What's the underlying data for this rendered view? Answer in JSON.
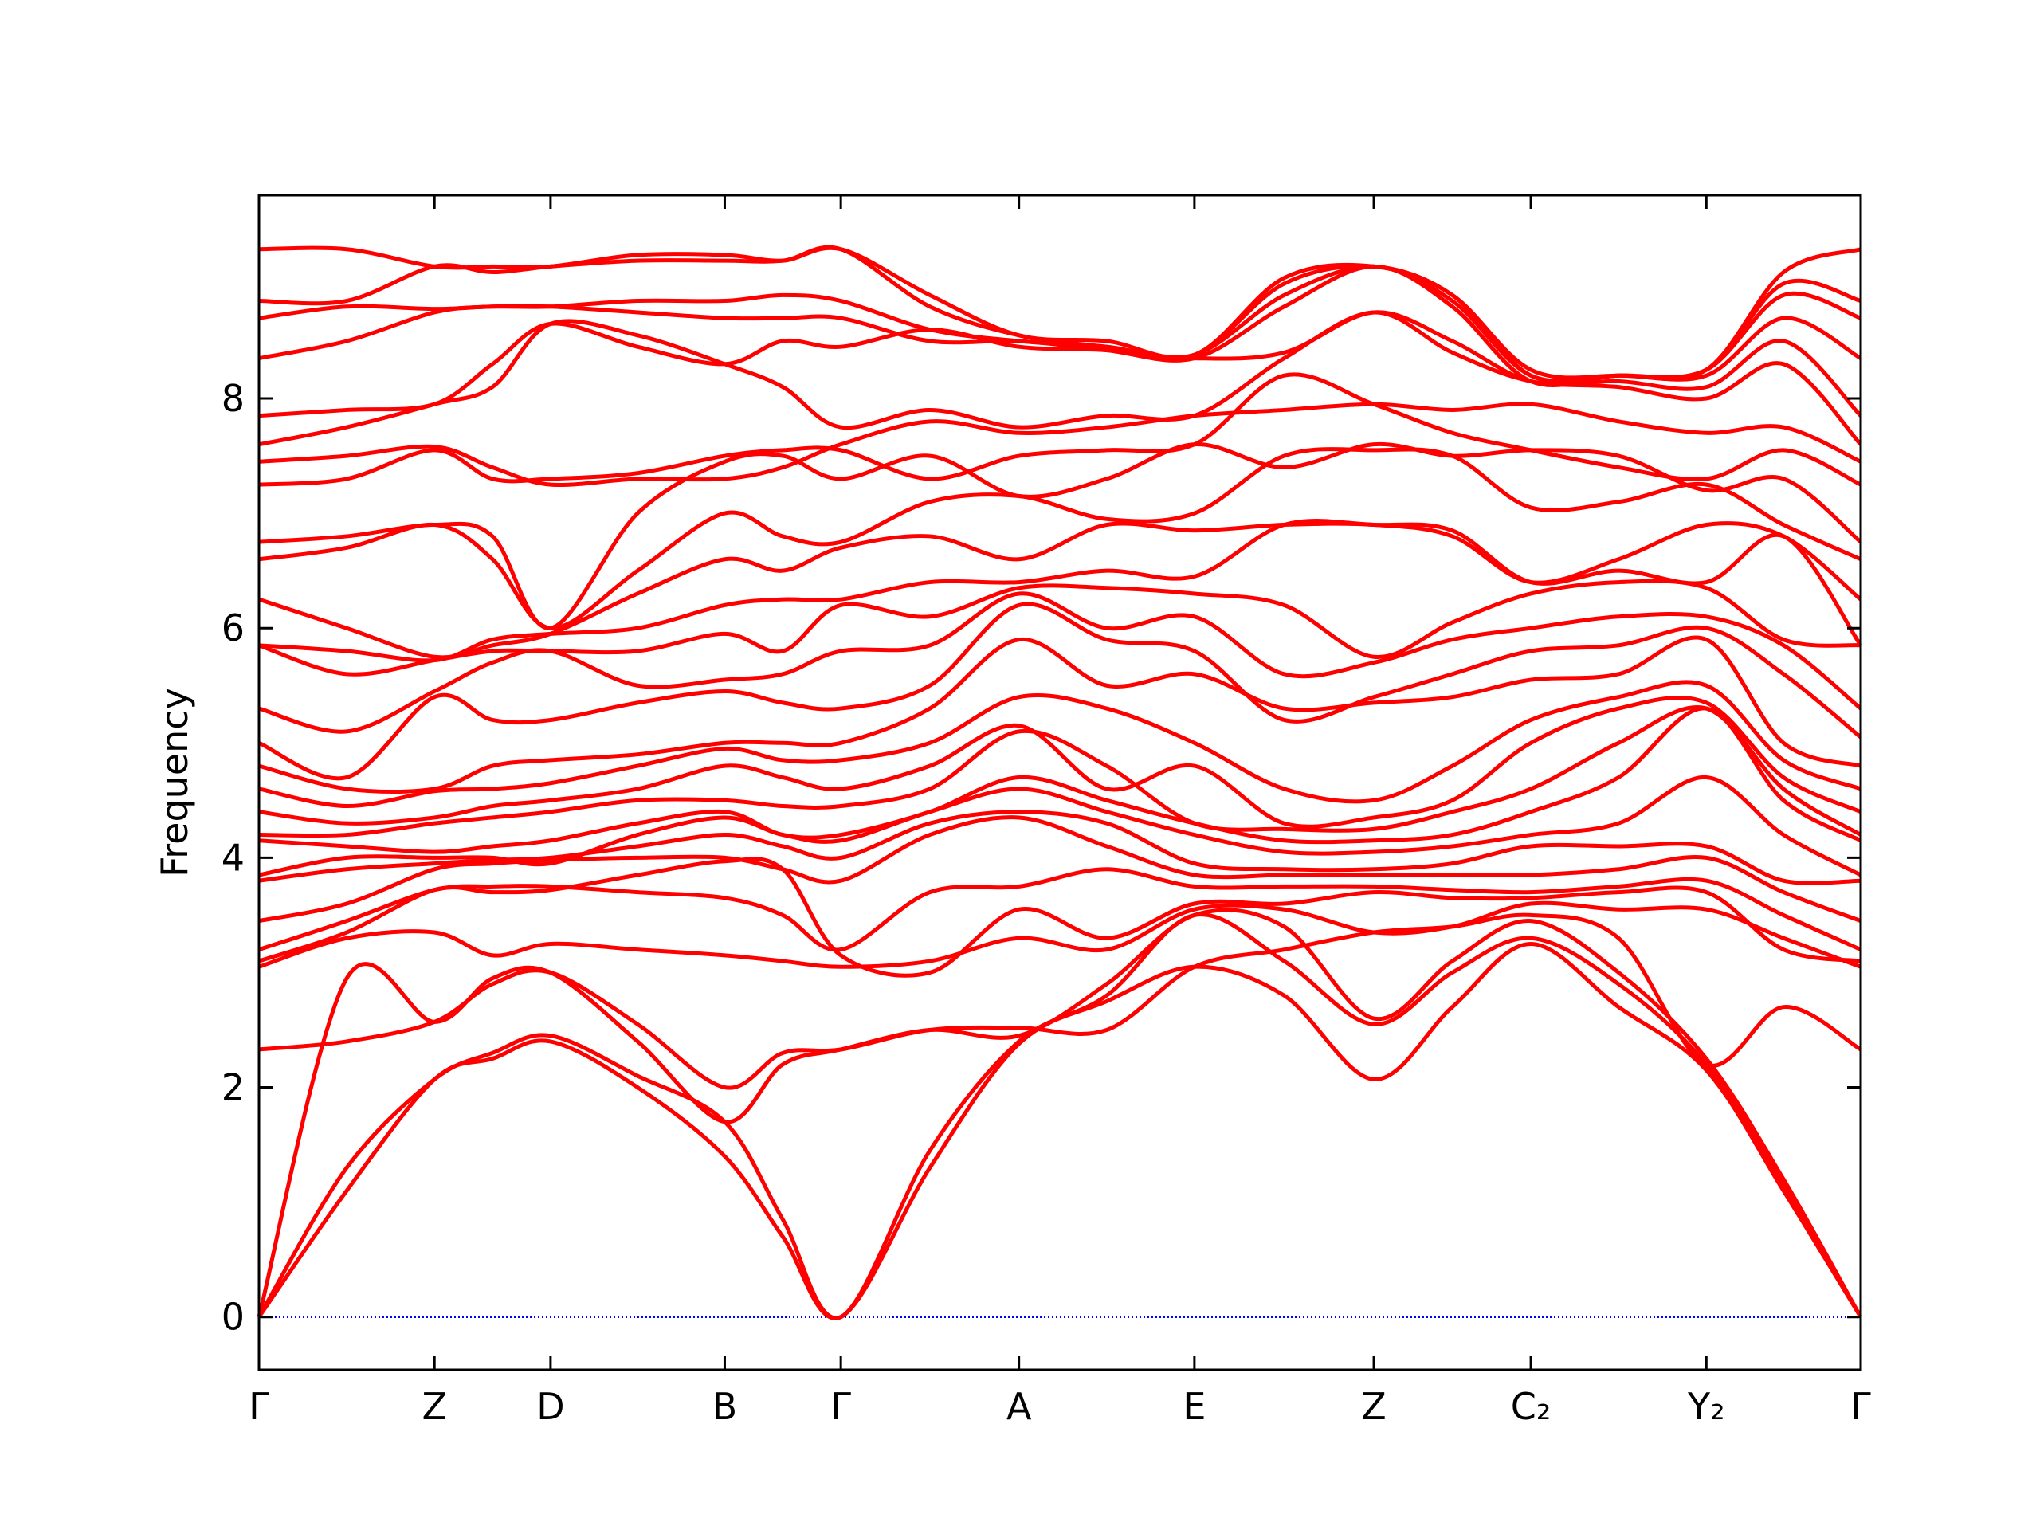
{
  "chart_data": {
    "type": "line",
    "y_label": "Frequency",
    "color": "#ff0000",
    "x": [
      0,
      0.0665,
      0.133,
      0.177,
      0.221,
      0.287,
      0.353,
      0.397,
      0.441,
      0.5085,
      0.576,
      0.6425,
      0.709,
      0.777,
      0.845,
      0.9045,
      0.964,
      1.0305,
      1.097,
      1.1555,
      1.214
    ],
    "xlim": [
      0,
      1.214
    ],
    "xticks": [
      {
        "value": 0,
        "label": "Γ"
      },
      {
        "value": 0.133,
        "label": "Z"
      },
      {
        "value": 0.221,
        "label": "D"
      },
      {
        "value": 0.353,
        "label": "B"
      },
      {
        "value": 0.441,
        "label": "Γ"
      },
      {
        "value": 0.576,
        "label": "A"
      },
      {
        "value": 0.709,
        "label": "E"
      },
      {
        "value": 0.845,
        "label": "Z"
      },
      {
        "value": 0.964,
        "label": "C₂"
      },
      {
        "value": 1.097,
        "label": "Y₂"
      },
      {
        "value": 1.214,
        "label": "Γ"
      }
    ],
    "ylim": [
      -0.46,
      9.77
    ],
    "yticks": [
      0,
      2,
      4,
      6,
      8
    ],
    "hline": {
      "value": 0,
      "color": "#0000ff"
    },
    "series": [
      {
        "values": [
          0,
          1.1,
          2.07,
          2.25,
          2.4,
          2.0,
          1.4,
          0.7,
          0,
          1.3,
          2.38,
          2.75,
          3.05,
          2.8,
          2.07,
          2.7,
          3.25,
          2.7,
          2.15,
          1.1,
          0
        ]
      },
      {
        "values": [
          0,
          1.3,
          2.07,
          2.3,
          2.45,
          2.1,
          1.7,
          0.85,
          0,
          1.45,
          2.4,
          2.8,
          3.5,
          3.1,
          2.55,
          3.0,
          3.3,
          2.9,
          2.2,
          1.15,
          0
        ]
      },
      {
        "values": [
          0,
          2.95,
          2.57,
          2.95,
          3.0,
          2.4,
          1.7,
          2.2,
          2.33,
          2.5,
          2.45,
          2.9,
          3.5,
          3.4,
          2.6,
          3.1,
          3.45,
          3.0,
          2.25,
          1.2,
          0
        ]
      },
      {
        "values": [
          2.33,
          2.4,
          2.57,
          2.9,
          3.0,
          2.55,
          2.0,
          2.3,
          2.33,
          2.5,
          2.52,
          2.5,
          3.05,
          3.2,
          3.35,
          3.4,
          3.5,
          3.3,
          2.2,
          2.7,
          2.33
        ]
      },
      {
        "values": [
          3.05,
          3.3,
          3.35,
          3.15,
          3.25,
          3.2,
          3.15,
          3.1,
          3.05,
          3.1,
          3.3,
          3.2,
          3.55,
          3.55,
          3.35,
          3.4,
          3.6,
          3.55,
          3.55,
          3.3,
          3.05
        ]
      },
      {
        "values": [
          3.1,
          3.35,
          3.72,
          3.7,
          3.72,
          3.85,
          3.97,
          3.9,
          3.15,
          3.0,
          3.55,
          3.3,
          3.6,
          3.6,
          3.7,
          3.65,
          3.65,
          3.7,
          3.7,
          3.2,
          3.1
        ]
      },
      {
        "values": [
          3.2,
          3.45,
          3.72,
          3.75,
          3.75,
          3.7,
          3.65,
          3.5,
          3.2,
          3.7,
          3.75,
          3.9,
          3.75,
          3.75,
          3.75,
          3.72,
          3.7,
          3.75,
          3.8,
          3.5,
          3.2
        ]
      },
      {
        "values": [
          3.45,
          3.6,
          3.9,
          3.95,
          3.98,
          4.0,
          4.0,
          3.9,
          3.8,
          4.2,
          4.35,
          4.1,
          3.85,
          3.85,
          3.85,
          3.85,
          3.85,
          3.9,
          4.0,
          3.7,
          3.45
        ]
      },
      {
        "values": [
          3.8,
          3.9,
          3.95,
          3.98,
          4.0,
          4.1,
          4.2,
          4.1,
          4.0,
          4.3,
          4.4,
          4.3,
          3.95,
          3.9,
          3.9,
          3.95,
          4.1,
          4.1,
          4.1,
          3.8,
          3.8
        ]
      },
      {
        "values": [
          3.85,
          4.0,
          4.0,
          4.0,
          3.95,
          4.2,
          4.35,
          4.2,
          4.15,
          4.4,
          4.6,
          4.4,
          4.2,
          4.05,
          4.05,
          4.1,
          4.2,
          4.3,
          4.7,
          4.2,
          3.85
        ]
      },
      {
        "values": [
          4.15,
          4.1,
          4.05,
          4.1,
          4.15,
          4.3,
          4.4,
          4.2,
          4.2,
          4.4,
          4.7,
          4.5,
          4.3,
          4.15,
          4.15,
          4.2,
          4.4,
          4.7,
          5.3,
          4.5,
          4.15
        ]
      },
      {
        "values": [
          4.2,
          4.2,
          4.3,
          4.35,
          4.4,
          4.5,
          4.5,
          4.45,
          4.45,
          4.6,
          5.1,
          4.8,
          4.3,
          4.25,
          4.25,
          4.4,
          4.6,
          5.0,
          5.3,
          4.6,
          4.2
        ]
      },
      {
        "values": [
          4.4,
          4.3,
          4.35,
          4.45,
          4.5,
          4.6,
          4.8,
          4.7,
          4.6,
          4.8,
          5.15,
          4.6,
          4.8,
          4.3,
          4.35,
          4.5,
          5.0,
          5.3,
          5.35,
          4.7,
          4.4
        ]
      },
      {
        "values": [
          4.6,
          4.45,
          4.58,
          4.6,
          4.65,
          4.8,
          4.95,
          4.85,
          4.85,
          5.0,
          5.4,
          5.3,
          5.0,
          4.6,
          4.5,
          4.8,
          5.2,
          5.4,
          5.5,
          4.85,
          4.6
        ]
      },
      {
        "values": [
          4.8,
          4.6,
          4.6,
          4.8,
          4.85,
          4.9,
          5.0,
          5.0,
          5.0,
          5.3,
          5.9,
          5.5,
          5.6,
          5.3,
          5.35,
          5.4,
          5.55,
          5.6,
          5.9,
          5.0,
          4.8
        ]
      },
      {
        "values": [
          5.0,
          4.7,
          5.4,
          5.2,
          5.2,
          5.35,
          5.45,
          5.35,
          5.3,
          5.5,
          6.2,
          5.9,
          5.8,
          5.2,
          5.4,
          5.6,
          5.8,
          5.85,
          6.0,
          5.6,
          5.05
        ]
      },
      {
        "values": [
          5.3,
          5.1,
          5.45,
          5.7,
          5.8,
          5.5,
          5.55,
          5.6,
          5.8,
          5.85,
          6.3,
          6.0,
          6.1,
          5.6,
          5.7,
          5.9,
          6.0,
          6.1,
          6.1,
          5.85,
          5.3
        ]
      },
      {
        "values": [
          5.85,
          5.6,
          5.72,
          5.8,
          5.8,
          5.8,
          5.95,
          5.8,
          6.2,
          6.1,
          6.35,
          6.35,
          6.3,
          6.2,
          5.75,
          6.05,
          6.3,
          6.4,
          6.35,
          5.9,
          5.85
        ]
      },
      {
        "values": [
          5.85,
          5.8,
          5.72,
          5.9,
          5.95,
          6.0,
          6.2,
          6.25,
          6.25,
          6.4,
          6.4,
          6.5,
          6.45,
          6.9,
          6.9,
          6.85,
          6.4,
          6.5,
          6.4,
          6.8,
          5.85
        ]
      },
      {
        "values": [
          6.25,
          6.0,
          5.75,
          5.85,
          5.95,
          6.3,
          6.6,
          6.5,
          6.7,
          6.8,
          6.6,
          6.9,
          6.85,
          6.9,
          6.9,
          6.8,
          6.4,
          6.6,
          6.9,
          6.8,
          6.25
        ]
      },
      {
        "values": [
          6.6,
          6.7,
          6.9,
          6.6,
          6.0,
          6.5,
          7.0,
          6.8,
          6.75,
          7.1,
          7.15,
          6.95,
          7.0,
          7.5,
          7.55,
          7.5,
          7.05,
          7.1,
          7.25,
          6.9,
          6.6
        ]
      },
      {
        "values": [
          6.75,
          6.8,
          6.9,
          6.8,
          6.0,
          7.0,
          7.45,
          7.5,
          7.3,
          7.5,
          7.15,
          7.3,
          7.6,
          7.4,
          7.6,
          7.5,
          7.55,
          7.5,
          7.2,
          7.3,
          6.75
        ]
      },
      {
        "values": [
          7.25,
          7.3,
          7.55,
          7.3,
          7.3,
          7.35,
          7.5,
          7.55,
          7.55,
          7.3,
          7.5,
          7.55,
          7.6,
          8.2,
          7.95,
          7.7,
          7.55,
          7.4,
          7.3,
          7.55,
          7.25
        ]
      },
      {
        "values": [
          7.45,
          7.5,
          7.58,
          7.4,
          7.25,
          7.3,
          7.3,
          7.4,
          7.6,
          7.8,
          7.7,
          7.75,
          7.85,
          7.9,
          7.95,
          7.9,
          7.95,
          7.8,
          7.7,
          7.75,
          7.45
        ]
      },
      {
        "values": [
          7.6,
          7.75,
          7.95,
          8.1,
          8.65,
          8.55,
          8.3,
          8.1,
          7.75,
          7.9,
          7.75,
          7.85,
          7.85,
          8.35,
          8.75,
          8.4,
          8.15,
          8.1,
          8.0,
          8.3,
          7.6
        ]
      },
      {
        "values": [
          7.85,
          7.9,
          7.95,
          8.3,
          8.65,
          8.45,
          8.3,
          8.5,
          8.45,
          8.6,
          8.45,
          8.42,
          8.35,
          8.4,
          8.75,
          8.5,
          8.15,
          8.15,
          8.1,
          8.5,
          7.85
        ]
      },
      {
        "values": [
          8.35,
          8.5,
          8.75,
          8.8,
          8.8,
          8.75,
          8.7,
          8.7,
          8.7,
          8.5,
          8.5,
          8.42,
          8.35,
          8.8,
          9.15,
          8.8,
          8.15,
          8.2,
          8.2,
          8.7,
          8.35
        ]
      },
      {
        "values": [
          8.7,
          8.8,
          8.78,
          8.8,
          8.8,
          8.85,
          8.85,
          8.9,
          8.85,
          8.6,
          8.5,
          8.45,
          8.38,
          8.9,
          9.15,
          8.85,
          8.2,
          8.2,
          8.25,
          8.9,
          8.7
        ]
      },
      {
        "values": [
          8.85,
          8.85,
          9.15,
          9.1,
          9.15,
          9.2,
          9.2,
          9.2,
          9.3,
          8.8,
          8.55,
          8.45,
          8.38,
          9.0,
          9.15,
          8.9,
          8.25,
          8.2,
          8.25,
          9.0,
          8.85
        ]
      },
      {
        "values": [
          9.3,
          9.3,
          9.15,
          9.15,
          9.15,
          9.25,
          9.25,
          9.2,
          9.3,
          8.9,
          8.55,
          8.5,
          8.38,
          9.05,
          9.15,
          8.9,
          8.2,
          8.2,
          8.25,
          9.1,
          9.3
        ]
      }
    ]
  }
}
